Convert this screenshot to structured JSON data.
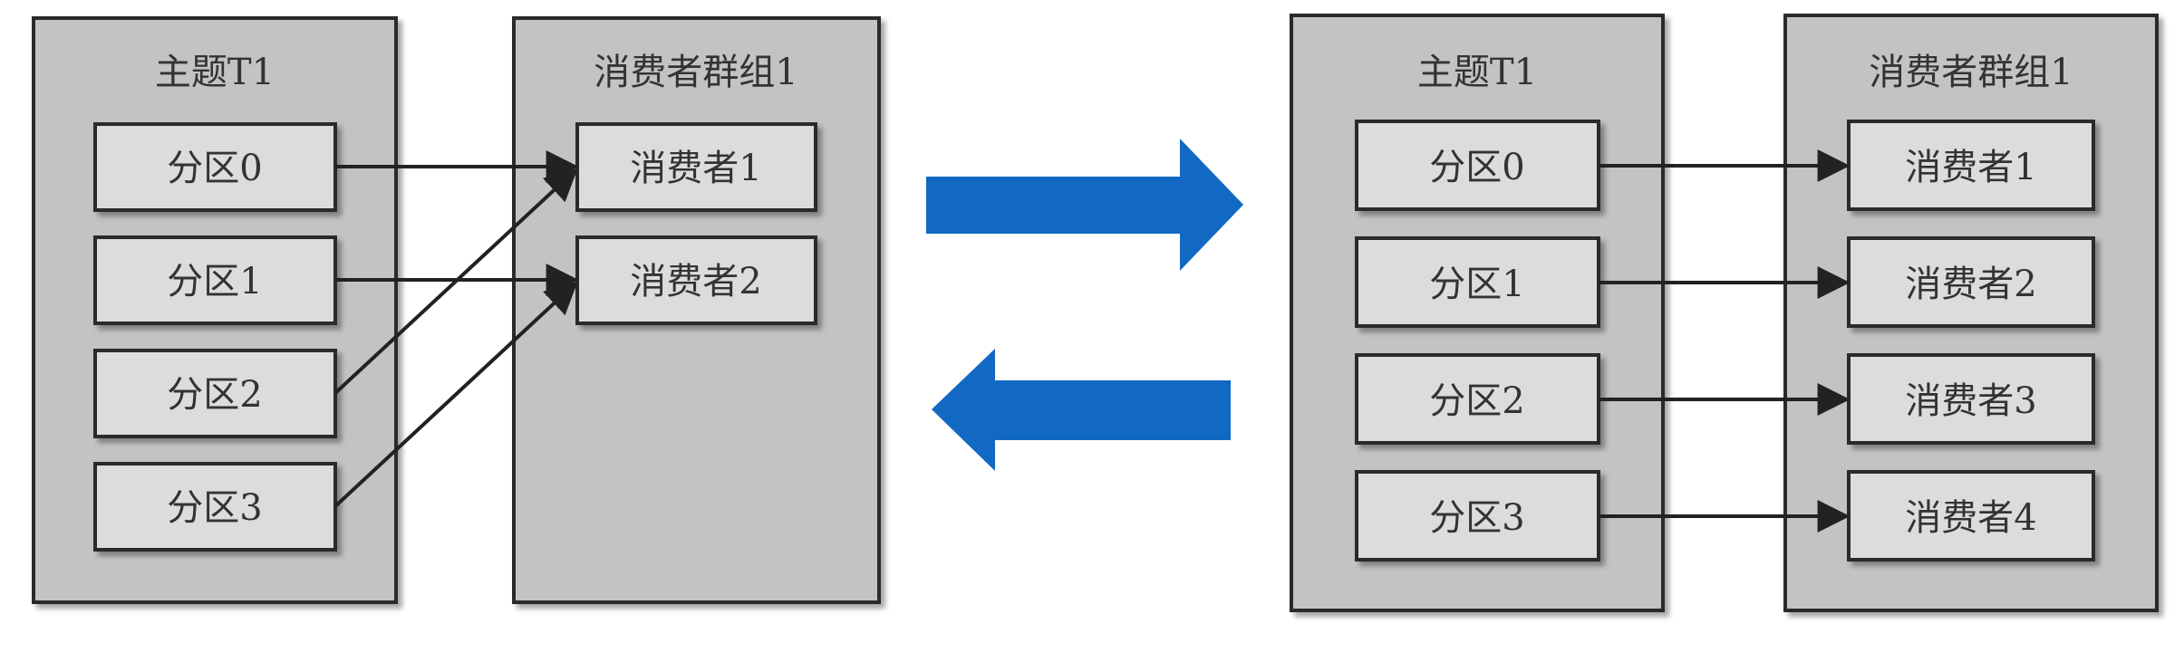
{
  "left_panel": {
    "topic": {
      "title": "主题T1",
      "partitions": [
        "分区0",
        "分区1",
        "分区2",
        "分区3"
      ]
    },
    "group": {
      "title": "消费者群组1",
      "consumers": [
        "消费者1",
        "消费者2"
      ]
    },
    "assignments": [
      {
        "from": 0,
        "to": 0
      },
      {
        "from": 1,
        "to": 1
      },
      {
        "from": 2,
        "to": 0
      },
      {
        "from": 3,
        "to": 1
      }
    ]
  },
  "right_panel": {
    "topic": {
      "title": "主题T1",
      "partitions": [
        "分区0",
        "分区1",
        "分区2",
        "分区3"
      ]
    },
    "group": {
      "title": "消费者群组1",
      "consumers": [
        "消费者1",
        "消费者2",
        "消费者3",
        "消费者4"
      ]
    },
    "assignments": [
      {
        "from": 0,
        "to": 0
      },
      {
        "from": 1,
        "to": 1
      },
      {
        "from": 2,
        "to": 2
      },
      {
        "from": 3,
        "to": 3
      }
    ]
  },
  "colors": {
    "container_fill": "#c3c3c3",
    "node_fill": "#dcdcdc",
    "border": "#2b2b2b",
    "edge": "#222222",
    "rebalance_arrow": "#1169c4"
  }
}
